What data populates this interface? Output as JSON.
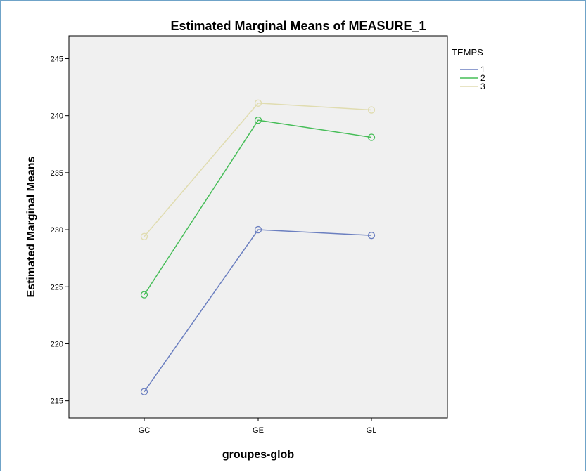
{
  "colors": {
    "plot_background": "#f0f0f0",
    "frame_border": "#6fa3c8",
    "series_1": "#6b7fc0",
    "series_2": "#45bd57",
    "series_3": "#e0dcb0"
  },
  "chart_data": {
    "type": "line",
    "title": "Estimated Marginal Means of MEASURE_1",
    "xlabel": "groupes-glob",
    "ylabel": "Estimated Marginal Means",
    "categories": [
      "GC",
      "GE",
      "GL"
    ],
    "yticks": [
      215,
      220,
      225,
      230,
      235,
      240,
      245
    ],
    "ylim": [
      213.5,
      247
    ],
    "grid": false,
    "legend": {
      "title": "TEMPS",
      "placement": "right-top"
    },
    "markers": "hollow-circle",
    "series": [
      {
        "name": "1",
        "values": [
          215.8,
          230.0,
          229.5
        ]
      },
      {
        "name": "2",
        "values": [
          224.3,
          239.6,
          238.1
        ]
      },
      {
        "name": "3",
        "values": [
          229.4,
          241.1,
          240.5
        ]
      }
    ]
  }
}
